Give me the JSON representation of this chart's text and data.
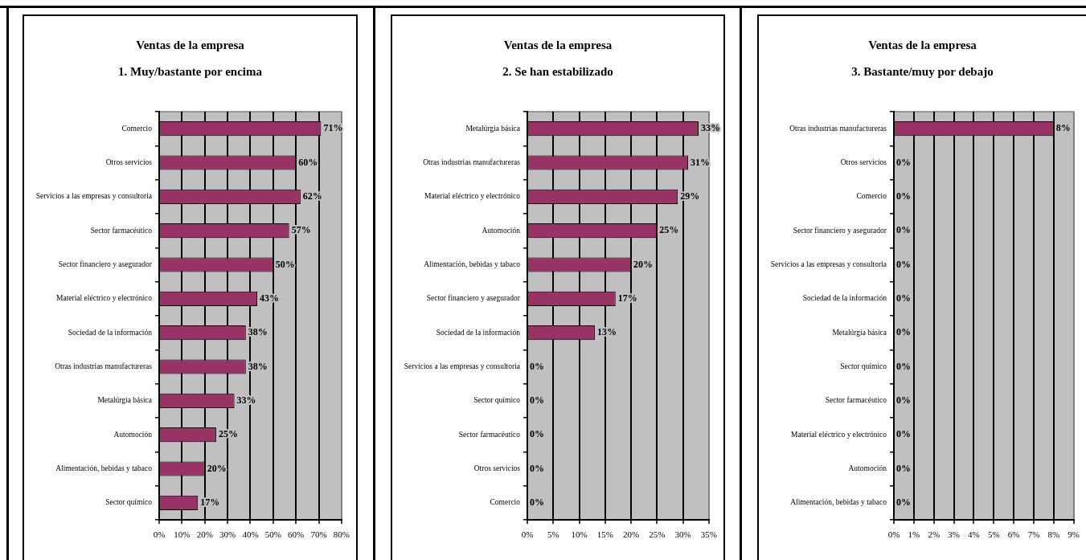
{
  "chart_data": [
    {
      "type": "bar",
      "orientation": "horizontal",
      "title": "Ventas de la empresa",
      "subtitle": "1. Muy/bastante por encima",
      "categories": [
        "Comercio",
        "Otros servicios",
        "Servicios a las empresas y consultoria",
        "Sector farmacéutico",
        "Sector financiero y asegurador",
        "Material eléctrico y electrónico",
        "Sociedad de la información",
        "Otras industrias manufactureras",
        "Metalúrgia básica",
        "Automoción",
        "Alimentación, bebidas y tabaco",
        "Sector químico"
      ],
      "values": [
        71,
        60,
        62,
        57,
        50,
        43,
        38,
        38,
        33,
        25,
        20,
        17
      ],
      "color": "#993366",
      "value_labels": [
        "71%",
        "60%",
        "62%",
        "57%",
        "50%",
        "43%",
        "38%",
        "38%",
        "33%",
        "25%",
        "20%",
        "17%"
      ],
      "xlim": [
        0,
        80
      ],
      "xticks": [
        {
          "value": 0,
          "label": "0%"
        },
        {
          "value": 10,
          "label": "10%"
        },
        {
          "value": 20,
          "label": "20%"
        },
        {
          "value": 30,
          "label": "30%"
        },
        {
          "value": 40,
          "label": "40%"
        },
        {
          "value": 50,
          "label": "50%"
        },
        {
          "value": 60,
          "label": "60%"
        },
        {
          "value": 70,
          "label": "70%"
        },
        {
          "value": 80,
          "label": "80%"
        }
      ],
      "grid": "x"
    },
    {
      "type": "bar",
      "orientation": "horizontal",
      "title": "Ventas de la empresa",
      "subtitle": "2. Se han estabilizado",
      "categories": [
        "Metalúrgia básica",
        "Otras industrias manufactureras",
        "Material eléctrico y electrónico",
        "Automoción",
        "Alimentación, bebidas y tabaco",
        "Sector financiero y asegurador",
        "Sociedad de la información",
        "Servicios a las empresas y consultoria",
        "Sector químico",
        "Sector farmacéutico",
        "Otros servicios",
        "Comercio"
      ],
      "values": [
        33,
        31,
        29,
        25,
        20,
        17,
        13,
        0,
        0,
        0,
        0,
        0
      ],
      "color": "#993366",
      "value_labels": [
        "33%",
        "31%",
        "29%",
        "25%",
        "20%",
        "17%",
        "13%",
        "0%",
        "0%",
        "0%",
        "0%",
        "0%"
      ],
      "xlim": [
        0,
        35
      ],
      "xticks": [
        {
          "value": 0,
          "label": "0%"
        },
        {
          "value": 5,
          "label": "5%"
        },
        {
          "value": 10,
          "label": "10%"
        },
        {
          "value": 15,
          "label": "15%"
        },
        {
          "value": 20,
          "label": "20%"
        },
        {
          "value": 25,
          "label": "25%"
        },
        {
          "value": 30,
          "label": "30%"
        },
        {
          "value": 35,
          "label": "35%"
        }
      ],
      "grid": "x"
    },
    {
      "type": "bar",
      "orientation": "horizontal",
      "title": "Ventas de la empresa",
      "subtitle": "3. Bastante/muy por debajo",
      "categories": [
        "Otras industrias manufactureras",
        "Otros servicios",
        "Comercio",
        "Sector financiero y asegurador",
        "Servicios a las empresas y consultoria",
        "Sociedad de la información",
        "Metalúrgia básica",
        "Sector químico",
        "Sector farmacéutico",
        "Material eléctrico y electrónico",
        "Automoción",
        "Alimentación, bebidas y tabaco"
      ],
      "values": [
        8,
        0,
        0,
        0,
        0,
        0,
        0,
        0,
        0,
        0,
        0,
        0
      ],
      "color": "#993366",
      "value_labels": [
        "8%",
        "0%",
        "0%",
        "0%",
        "0%",
        "0%",
        "0%",
        "0%",
        "0%",
        "0%",
        "0%",
        "0%"
      ],
      "xlim": [
        0,
        9
      ],
      "xticks": [
        {
          "value": 0,
          "label": "0%"
        },
        {
          "value": 1,
          "label": "1%"
        },
        {
          "value": 2,
          "label": "2%"
        },
        {
          "value": 3,
          "label": "3%"
        },
        {
          "value": 4,
          "label": "4%"
        },
        {
          "value": 5,
          "label": "5%"
        },
        {
          "value": 6,
          "label": "6%"
        },
        {
          "value": 7,
          "label": "7%"
        },
        {
          "value": 8,
          "label": "8%"
        },
        {
          "value": 9,
          "label": "9%"
        }
      ],
      "grid": "x"
    }
  ]
}
